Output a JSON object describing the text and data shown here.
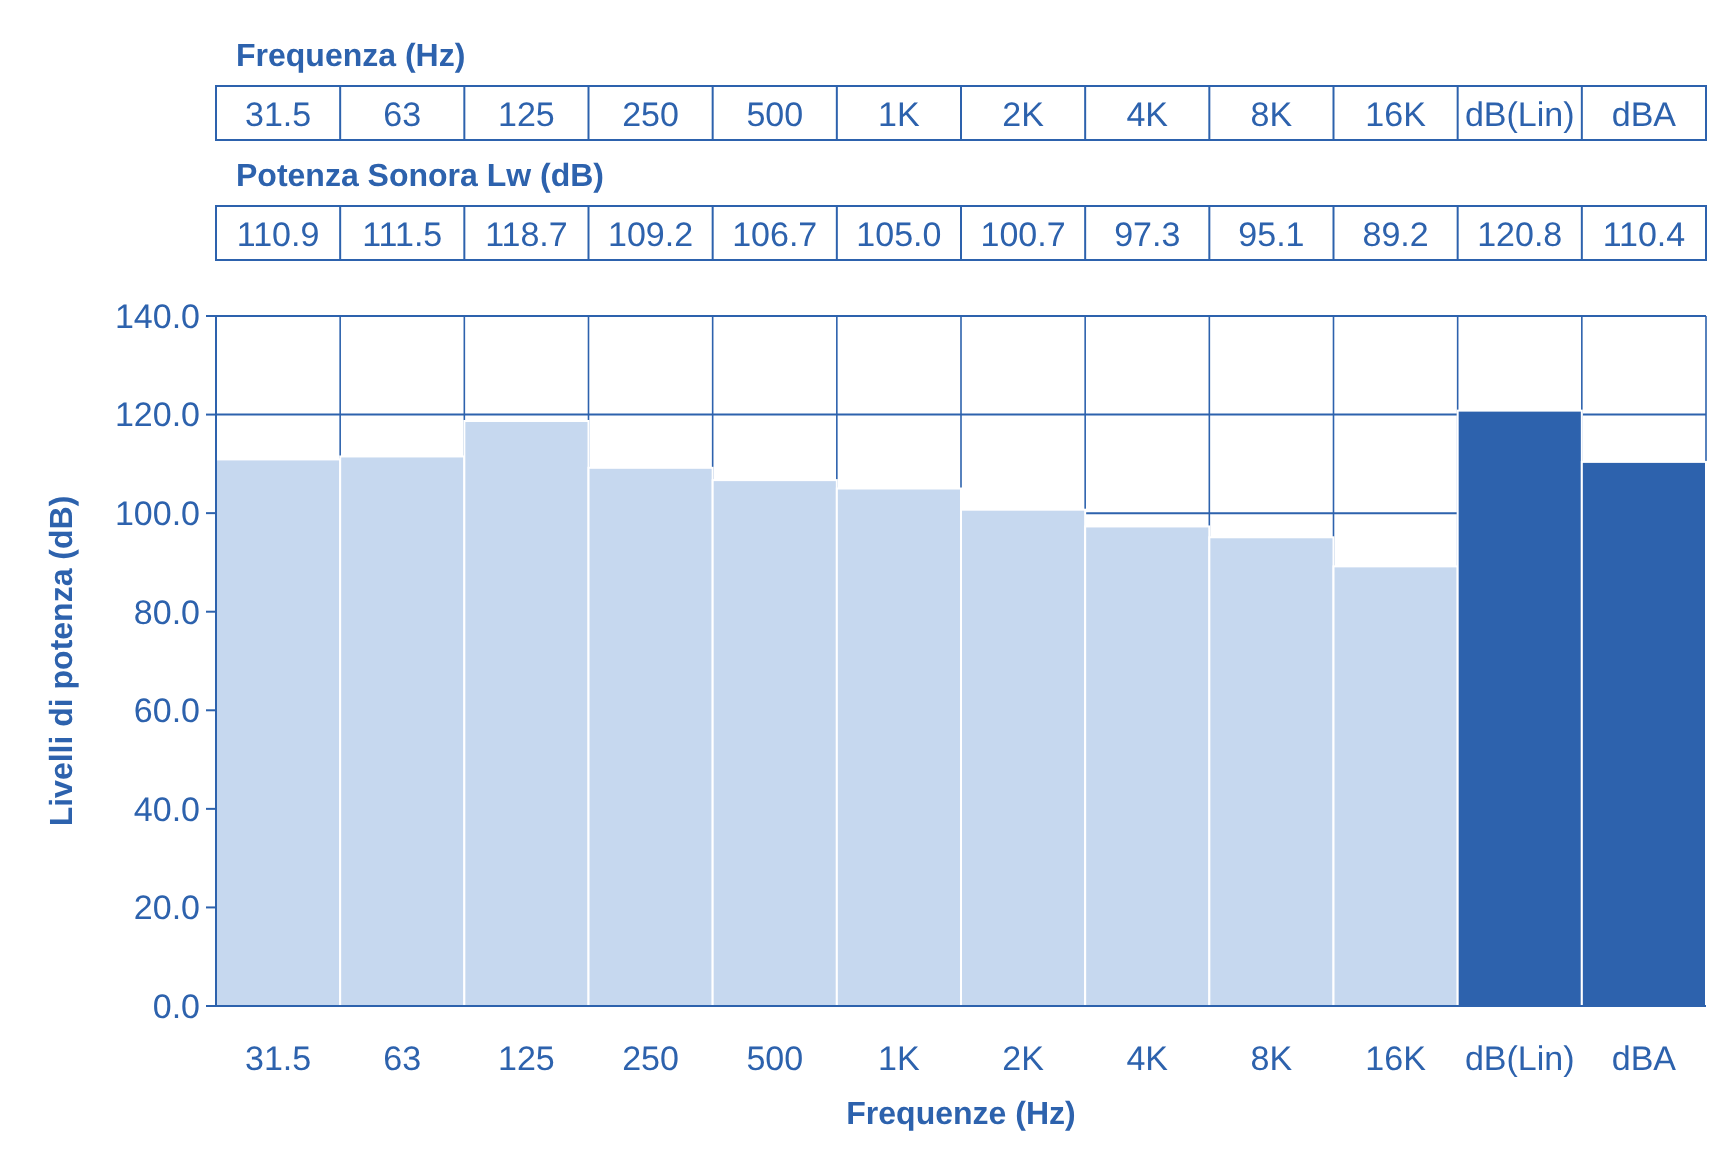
{
  "chart_data": {
    "type": "bar",
    "xlabel": "Frequenze (Hz)",
    "ylabel": "Livelli di potenza (dB)",
    "annotations": [
      "Frequenza (Hz)",
      "Potenza Sonora Lw (dB)"
    ],
    "categories": [
      "31.5",
      "63",
      "125",
      "250",
      "500",
      "1K",
      "2K",
      "4K",
      "8K",
      "16K",
      "dB(Lin)",
      "dBA"
    ],
    "values": [
      110.9,
      111.5,
      118.7,
      109.2,
      106.7,
      105.0,
      100.7,
      97.3,
      95.1,
      89.2,
      120.8,
      110.4
    ],
    "value_labels": [
      "110.9",
      "111.5",
      "118.7",
      "109.2",
      "106.7",
      "105.0",
      "100.7",
      "97.3",
      "95.1",
      "89.2",
      "120.8",
      "110.4"
    ],
    "colors": [
      "#c6d8ef",
      "#c6d8ef",
      "#c6d8ef",
      "#c6d8ef",
      "#c6d8ef",
      "#c6d8ef",
      "#c6d8ef",
      "#c6d8ef",
      "#c6d8ef",
      "#c6d8ef",
      "#2d62ad",
      "#2d62ad"
    ],
    "ylim": [
      0,
      140
    ],
    "yticks": [
      {
        "value": 0,
        "label": "0.0"
      },
      {
        "value": 20,
        "label": "20.0"
      },
      {
        "value": 40,
        "label": "40.0"
      },
      {
        "value": 60,
        "label": "60.0"
      },
      {
        "value": 80,
        "label": "80.0"
      },
      {
        "value": 100,
        "label": "100.0"
      },
      {
        "value": 120,
        "label": "120.0"
      },
      {
        "value": 140,
        "label": "140.0"
      }
    ],
    "grid": "y"
  }
}
